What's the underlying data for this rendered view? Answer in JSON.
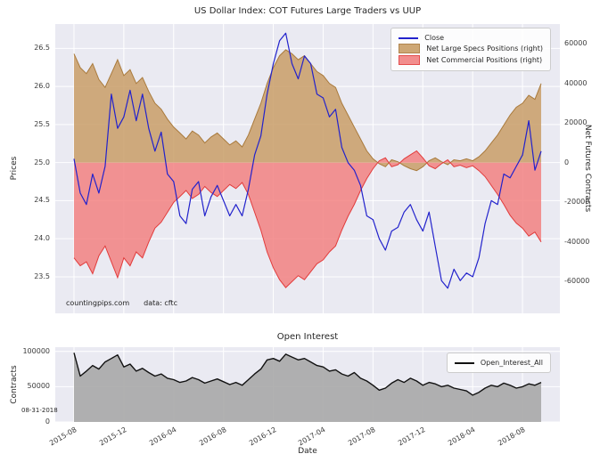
{
  "figure": {
    "watermark": "countingpips.com",
    "data_note": "data: cftc",
    "date_annotation": "08-31-2018"
  },
  "chart_data": [
    {
      "type": "line",
      "title": "US Dollar Index: COT Futures Large Traders vs UUP",
      "grid": true,
      "legend_position": "upper right",
      "x_axis": {
        "unit": "months since 2015-08",
        "start": 0,
        "step": 0.5,
        "lim": [
          -1.5,
          39
        ],
        "tick_values": [
          0,
          4,
          8,
          12,
          16,
          20,
          24,
          28,
          32,
          36
        ],
        "tick_labels": [
          "2015-08",
          "2015-12",
          "2016-04",
          "2016-08",
          "2016-12",
          "2017-04",
          "2017-08",
          "2017-12",
          "2018-04",
          "2018-08"
        ]
      },
      "left_axis": {
        "label": "Prices",
        "lim": [
          23.02,
          26.82
        ],
        "tick_values": [
          23.5,
          24.0,
          24.5,
          25.0,
          25.5,
          26.0,
          26.5
        ],
        "tick_labels": [
          "23.5",
          "24.0",
          "24.5",
          "25.0",
          "25.5",
          "26.0",
          "26.5"
        ]
      },
      "right_axis": {
        "label": "Net Futures Contracts",
        "lim": [
          -76000,
          70000
        ],
        "tick_values": [
          -60000,
          -40000,
          -20000,
          0,
          20000,
          40000,
          60000
        ],
        "tick_labels": [
          "-60000",
          "-40000",
          "-20000",
          "0",
          "20000",
          "40000",
          "60000"
        ]
      },
      "series": [
        {
          "name": "Close",
          "axis": "left",
          "style": "line",
          "color": "#2222cc",
          "values": [
            25.05,
            24.6,
            24.45,
            24.85,
            24.6,
            24.95,
            25.9,
            25.45,
            25.6,
            25.95,
            25.55,
            25.9,
            25.45,
            25.15,
            25.4,
            24.85,
            24.75,
            24.3,
            24.2,
            24.65,
            24.75,
            24.3,
            24.55,
            24.7,
            24.5,
            24.3,
            24.45,
            24.3,
            24.65,
            25.1,
            25.35,
            25.9,
            26.3,
            26.6,
            26.7,
            26.3,
            26.1,
            26.4,
            26.3,
            25.9,
            25.85,
            25.6,
            25.7,
            25.2,
            25.0,
            24.9,
            24.7,
            24.3,
            24.25,
            24.0,
            23.85,
            24.1,
            24.15,
            24.35,
            24.45,
            24.25,
            24.1,
            24.35,
            23.9,
            23.45,
            23.35,
            23.6,
            23.45,
            23.55,
            23.5,
            23.75,
            24.2,
            24.5,
            24.45,
            24.85,
            24.8,
            24.95,
            25.1,
            25.55,
            24.9,
            25.15
          ]
        },
        {
          "name": "Net Large Specs Positions (right)",
          "axis": "right",
          "style": "area",
          "fill": "#c99e67",
          "edge": "#a97a3c",
          "values": [
            55000,
            48000,
            45000,
            50000,
            42000,
            38000,
            45000,
            52000,
            44000,
            47000,
            40000,
            43000,
            36000,
            30000,
            27000,
            22000,
            18000,
            15000,
            12000,
            16000,
            14000,
            10000,
            13000,
            15000,
            12000,
            9000,
            11000,
            8000,
            14000,
            22000,
            30000,
            40000,
            48000,
            54000,
            57000,
            55000,
            52000,
            54000,
            50000,
            46000,
            44000,
            40000,
            38000,
            30000,
            24000,
            18000,
            12000,
            6000,
            2000,
            -500,
            -2000,
            1500,
            500,
            -1500,
            -3000,
            -4000,
            -2000,
            1000,
            2500,
            500,
            -1000,
            1500,
            1000,
            2000,
            1000,
            3000,
            6000,
            10000,
            14000,
            19000,
            24000,
            28000,
            30000,
            34000,
            32000,
            40000
          ]
        },
        {
          "name": "Net Commercial Positions (right)",
          "axis": "right",
          "style": "area",
          "fill": "#f28181",
          "edge": "#e23b3b",
          "values": [
            -48000,
            -52000,
            -50000,
            -56000,
            -47000,
            -42000,
            -50000,
            -58000,
            -48000,
            -52000,
            -45000,
            -48000,
            -40000,
            -33000,
            -30000,
            -25000,
            -20000,
            -17000,
            -14000,
            -18000,
            -16000,
            -12000,
            -15000,
            -17000,
            -14000,
            -11000,
            -13000,
            -10000,
            -16000,
            -25000,
            -34000,
            -45000,
            -53000,
            -59000,
            -63000,
            -60000,
            -57000,
            -59000,
            -55000,
            -51000,
            -49000,
            -45000,
            -42000,
            -34000,
            -27000,
            -21000,
            -14000,
            -8000,
            -3000,
            1000,
            2500,
            -2000,
            -1000,
            2000,
            4000,
            6000,
            2500,
            -1500,
            -3000,
            -500,
            1500,
            -2000,
            -1200,
            -2500,
            -1500,
            -4000,
            -7000,
            -11500,
            -16000,
            -21000,
            -26500,
            -30500,
            -33000,
            -37000,
            -35000,
            -40000
          ]
        }
      ]
    },
    {
      "type": "line",
      "title": "Open Interest",
      "xlabel": "Date",
      "grid": true,
      "legend_position": "upper right",
      "x_axis_shared_with_chart": 0,
      "left_axis": {
        "label": "Contracts",
        "lim": [
          0,
          106000
        ],
        "tick_values": [
          0,
          50000,
          100000
        ],
        "tick_labels": [
          "0",
          "50000",
          "100000"
        ]
      },
      "series": [
        {
          "name": "Open_Interest_All",
          "axis": "left",
          "style": "area-line",
          "color": "#111111",
          "fill": "#a9a9a9",
          "values": [
            98000,
            65000,
            72000,
            80000,
            75000,
            85000,
            90000,
            95000,
            78000,
            82000,
            72000,
            76000,
            70000,
            65000,
            68000,
            62000,
            60000,
            56000,
            58000,
            63000,
            60000,
            55000,
            58000,
            61000,
            57000,
            53000,
            56000,
            52000,
            60000,
            68000,
            75000,
            88000,
            90000,
            86000,
            96000,
            92000,
            88000,
            90000,
            85000,
            80000,
            78000,
            72000,
            74000,
            68000,
            65000,
            70000,
            62000,
            58000,
            52000,
            45000,
            48000,
            55000,
            60000,
            56000,
            62000,
            58000,
            52000,
            56000,
            54000,
            50000,
            52000,
            48000,
            46000,
            44000,
            38000,
            42000,
            48000,
            52000,
            50000,
            55000,
            52000,
            48000,
            50000,
            54000,
            52000,
            56000
          ]
        }
      ]
    }
  ]
}
